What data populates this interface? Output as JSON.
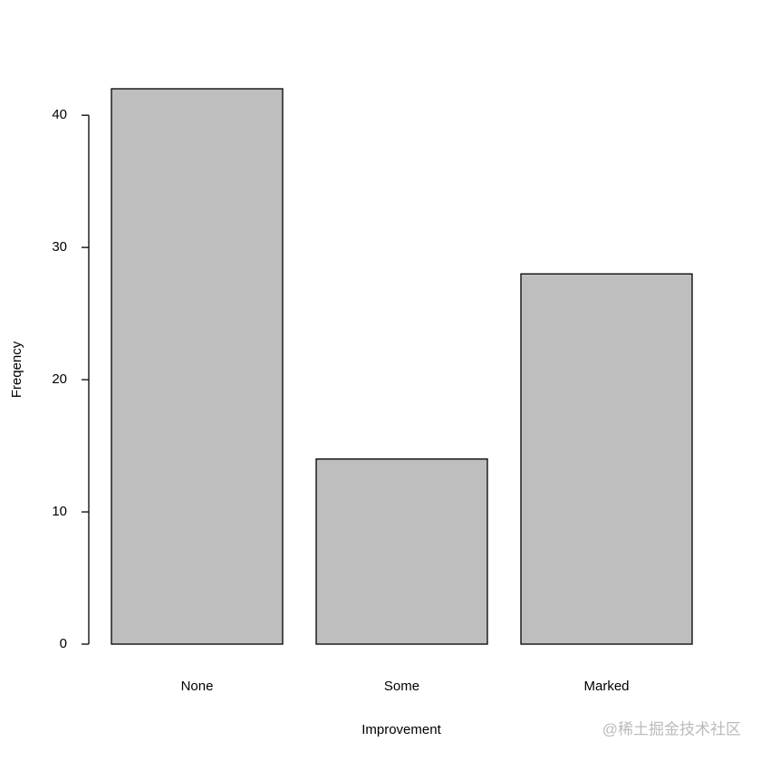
{
  "chart_data": {
    "type": "bar",
    "categories": [
      "None",
      "Some",
      "Marked"
    ],
    "values": [
      42,
      14,
      28
    ],
    "color": "#bebebe",
    "x_label": "Improvement",
    "y_label": "Freqency",
    "ylim": [
      0,
      42
    ],
    "yticks": [
      0,
      10,
      20,
      30,
      40
    ],
    "grid": false,
    "watermark": "@稀土掘金技术社区"
  }
}
